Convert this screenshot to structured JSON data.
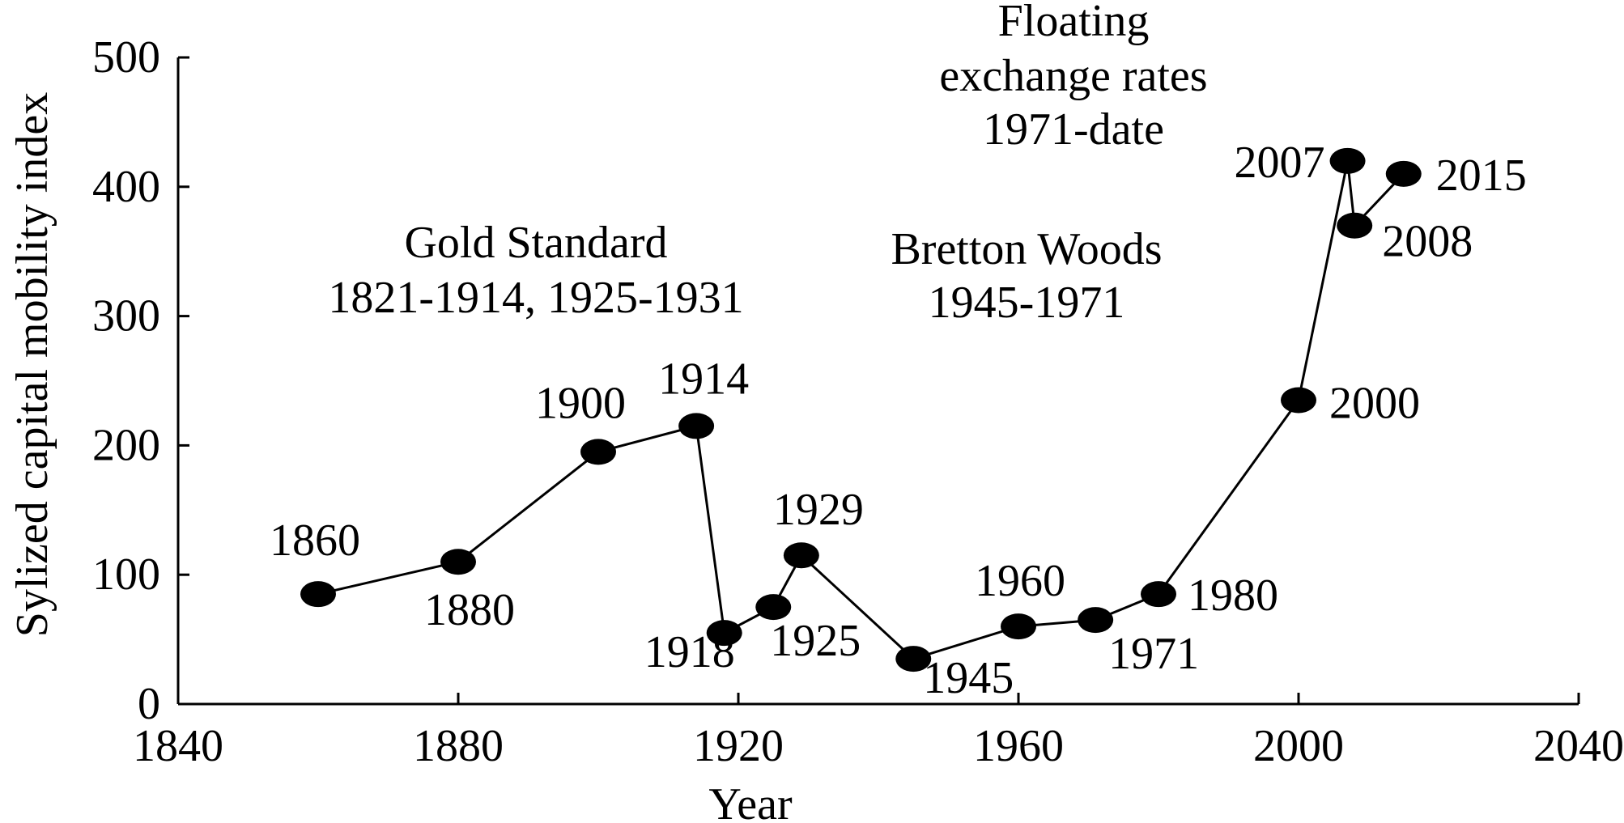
{
  "chart_data": {
    "type": "line",
    "title": "",
    "xlabel": "Year",
    "ylabel": "Sylized capital mobility index",
    "xlim": [
      1840,
      2040
    ],
    "ylim": [
      0,
      500
    ],
    "x_ticks": [
      1840,
      1880,
      1920,
      1960,
      2000,
      2040
    ],
    "y_ticks": [
      0,
      100,
      200,
      300,
      400,
      500
    ],
    "grid": false,
    "legend": "none",
    "series": [
      {
        "x": [
          1860,
          1880,
          1900,
          1914,
          1918,
          1925,
          1929,
          1945,
          1960,
          1971,
          1980,
          2000,
          2007,
          2008,
          2015
        ],
        "y": [
          85,
          110,
          195,
          215,
          55,
          75,
          115,
          35,
          60,
          65,
          85,
          235,
          420,
          370,
          410
        ],
        "point_labels": [
          "1860",
          "1880",
          "1900",
          "1914",
          "1918",
          "1925",
          "1929",
          "1945",
          "1960",
          "1971",
          "1980",
          "2000",
          "2007",
          "2008",
          "2015"
        ]
      }
    ],
    "annotations": [
      {
        "lines": [
          "Gold Standard",
          "1821-1914, 1925-1931"
        ]
      },
      {
        "lines": [
          "Bretton Woods",
          "1945-1971"
        ]
      },
      {
        "lines": [
          "Floating",
          "exchange rates",
          "1971-date"
        ]
      }
    ],
    "colors": {
      "line": "#000000",
      "marker": "#000000",
      "text": "#000000"
    }
  }
}
